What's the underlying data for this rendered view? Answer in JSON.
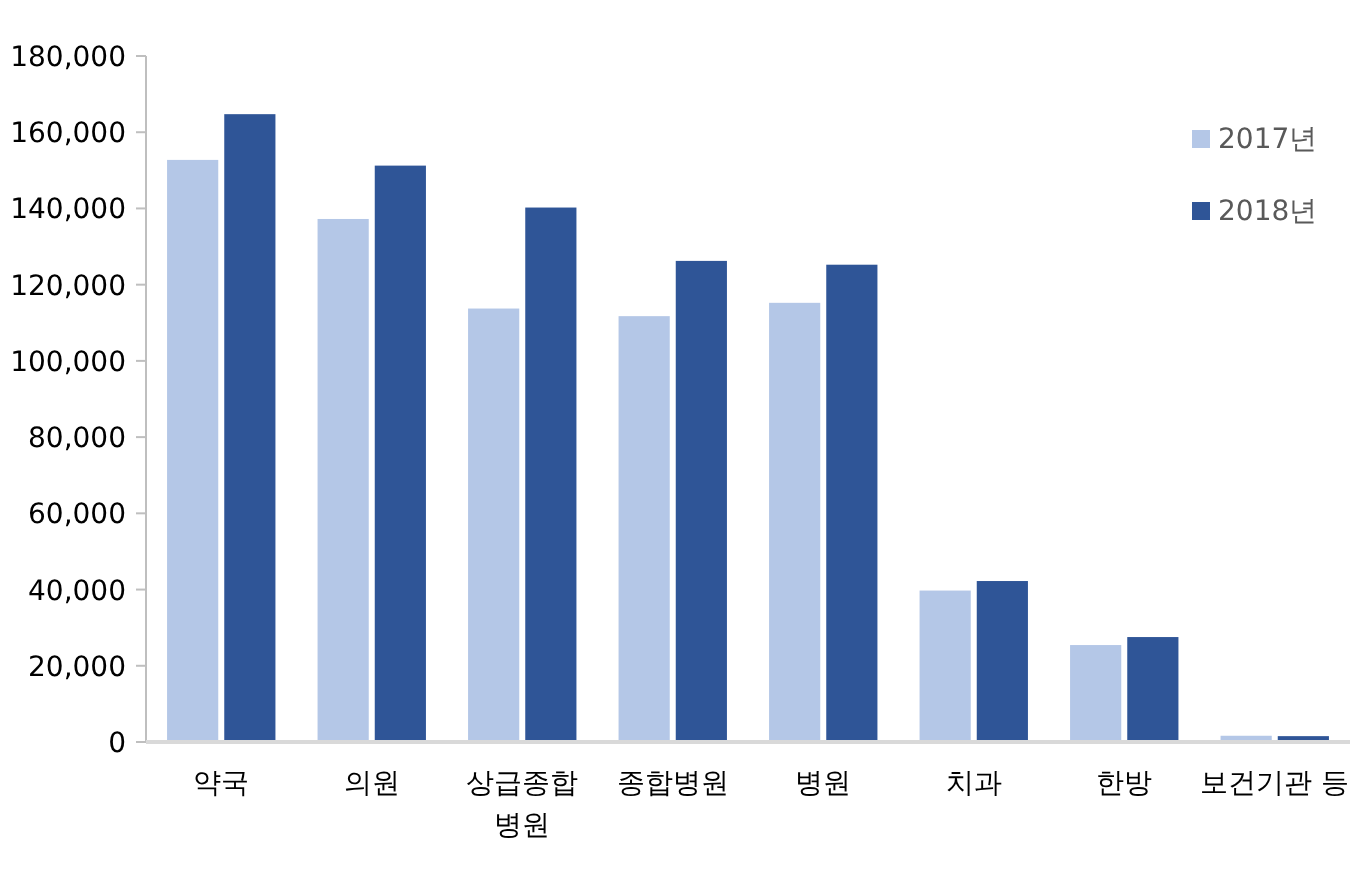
{
  "chart_data": {
    "type": "bar",
    "categories": [
      "약국",
      "의원",
      "상급종합 병원",
      "종합병원",
      "병원",
      "치과",
      "한방",
      "보건기관 등"
    ],
    "series": [
      {
        "name": "2017년",
        "color": "#b4c7e7",
        "values": [
          153000,
          137500,
          114000,
          112000,
          115500,
          40000,
          25700,
          1900
        ]
      },
      {
        "name": "2018년",
        "color": "#2f5597",
        "values": [
          165000,
          151500,
          140500,
          126500,
          125500,
          42500,
          27800,
          1800
        ]
      }
    ],
    "ylim": [
      0,
      180000
    ],
    "yticks": [
      {
        "value": 0,
        "label": "0"
      },
      {
        "value": 20000,
        "label": "20,000"
      },
      {
        "value": 40000,
        "label": "40,000"
      },
      {
        "value": 60000,
        "label": "60,000"
      },
      {
        "value": 80000,
        "label": "80,000"
      },
      {
        "value": 100000,
        "label": "100,000"
      },
      {
        "value": 120000,
        "label": "120,000"
      },
      {
        "value": 140000,
        "label": "140,000"
      },
      {
        "value": 160000,
        "label": "160,000"
      },
      {
        "value": 180000,
        "label": "180,000"
      }
    ],
    "grid": false,
    "legend": "top right"
  }
}
